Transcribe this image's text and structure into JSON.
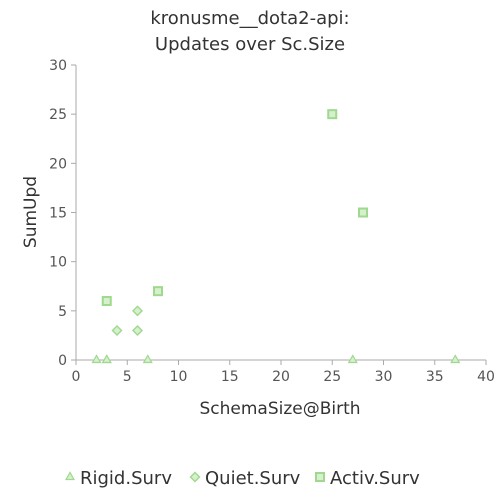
{
  "chart_data": {
    "type": "scatter",
    "title_lines": [
      "kronusme__dota2-api:",
      "Updates over Sc.Size"
    ],
    "xlabel": "SchemaSize@Birth",
    "ylabel": "SumUpd",
    "xlim": [
      0,
      40
    ],
    "ylim": [
      0,
      30
    ],
    "x_ticks": [
      0,
      5,
      10,
      15,
      20,
      25,
      30,
      35,
      40
    ],
    "y_ticks": [
      0,
      5,
      10,
      15,
      20,
      25,
      30
    ],
    "grid": false,
    "legend_position": "bottom",
    "series": [
      {
        "name": "Rigid.Surv",
        "marker": "triangle",
        "color": "#9fd88f",
        "points": [
          [
            2,
            0
          ],
          [
            3,
            0
          ],
          [
            3,
            0
          ],
          [
            7,
            0
          ],
          [
            27,
            0
          ],
          [
            37,
            0
          ]
        ]
      },
      {
        "name": "Quiet.Surv",
        "marker": "diamond",
        "color": "#9fd88f",
        "points": [
          [
            4,
            3
          ],
          [
            6,
            3
          ],
          [
            6,
            5
          ]
        ]
      },
      {
        "name": "Activ.Surv",
        "marker": "square",
        "color": "#9fd88f",
        "points": [
          [
            3,
            6
          ],
          [
            8,
            7
          ],
          [
            25,
            25
          ],
          [
            28,
            15
          ]
        ]
      }
    ]
  },
  "colors": {
    "axis": "#aaaaaa",
    "text": "#333333",
    "tick_text": "#555555",
    "marker_fill": "#d6f0cc",
    "marker_stroke": "#9fd88f"
  }
}
